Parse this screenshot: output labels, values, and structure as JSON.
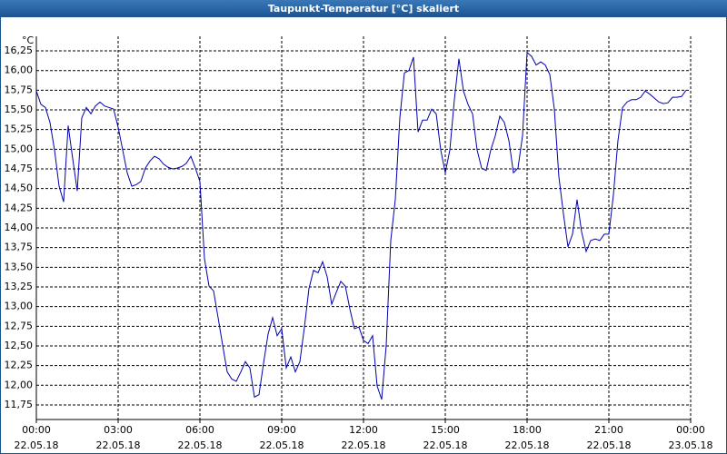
{
  "chart_data": {
    "type": "line",
    "title": "Taupunkt-Temperatur [°C] skaliert",
    "y_unit": "°C",
    "x": [
      0,
      10,
      20,
      30,
      40,
      50,
      60,
      70,
      80,
      90,
      100,
      110,
      120,
      130,
      140,
      150,
      160,
      170,
      180,
      190,
      200,
      210,
      220,
      230,
      240,
      250,
      260,
      270,
      280,
      290,
      300,
      310,
      320,
      330,
      340,
      350,
      360,
      370,
      380,
      390,
      400,
      410,
      420,
      430,
      440,
      450,
      460,
      470,
      480,
      490,
      500,
      510,
      520,
      530,
      540,
      550,
      560,
      570,
      580,
      590,
      600,
      610,
      620,
      630,
      640,
      650,
      660,
      670,
      680,
      690,
      700,
      710,
      720,
      730,
      740,
      750,
      760,
      770,
      780,
      790,
      800,
      810,
      820,
      830,
      840,
      850,
      860,
      870,
      880,
      890,
      900,
      910,
      920,
      930,
      940,
      950,
      960,
      970,
      980,
      990,
      1000,
      1010,
      1020,
      1030,
      1040,
      1050,
      1060,
      1070,
      1080,
      1090,
      1100,
      1110,
      1120,
      1130,
      1140,
      1150,
      1160,
      1170,
      1180,
      1190,
      1200,
      1210,
      1220,
      1230,
      1240,
      1250,
      1260,
      1270,
      1280,
      1290,
      1300,
      1310,
      1320,
      1330,
      1340,
      1350,
      1360,
      1370,
      1380,
      1390,
      1400,
      1410,
      1420,
      1430
    ],
    "series": [
      {
        "color": "#0000b0",
        "values": [
          15.74,
          15.57,
          15.53,
          15.34,
          14.99,
          14.53,
          14.33,
          15.3,
          14.88,
          14.47,
          15.4,
          15.53,
          15.45,
          15.55,
          15.6,
          15.55,
          15.53,
          15.51,
          15.28,
          14.99,
          14.7,
          14.53,
          14.55,
          14.59,
          14.76,
          14.85,
          14.91,
          14.88,
          14.81,
          14.77,
          14.75,
          14.76,
          14.78,
          14.82,
          14.91,
          14.76,
          14.59,
          13.61,
          13.26,
          13.2,
          12.86,
          12.51,
          12.17,
          12.08,
          12.05,
          12.17,
          12.3,
          12.22,
          11.85,
          11.88,
          12.28,
          12.65,
          12.86,
          12.63,
          12.72,
          12.22,
          12.36,
          12.17,
          12.3,
          12.74,
          13.23,
          13.46,
          13.43,
          13.57,
          13.38,
          13.03,
          13.18,
          13.32,
          13.26,
          12.97,
          12.72,
          12.74,
          12.57,
          12.53,
          12.63,
          11.99,
          11.82,
          12.51,
          13.84,
          14.36,
          15.4,
          15.97,
          16.0,
          16.17,
          15.22,
          15.37,
          15.37,
          15.51,
          15.45,
          14.99,
          14.7,
          14.99,
          15.63,
          16.15,
          15.74,
          15.57,
          15.45,
          14.99,
          14.76,
          14.73,
          14.99,
          15.17,
          15.42,
          15.34,
          15.11,
          14.7,
          14.76,
          15.17,
          16.23,
          16.18,
          16.07,
          16.11,
          16.07,
          15.95,
          15.51,
          14.65,
          14.18,
          13.76,
          13.92,
          14.36,
          13.95,
          13.7,
          13.84,
          13.86,
          13.84,
          13.92,
          13.92,
          14.42,
          15.11,
          15.53,
          15.6,
          15.63,
          15.63,
          15.66,
          15.74,
          15.7,
          15.65,
          15.6,
          15.58,
          15.59,
          15.66,
          15.66,
          15.67,
          15.75
        ]
      }
    ],
    "xlim": [
      0,
      1440
    ],
    "xticks": [
      {
        "value": 0,
        "label": "00:00"
      },
      {
        "value": 180,
        "label": "03:00"
      },
      {
        "value": 360,
        "label": "06:00"
      },
      {
        "value": 540,
        "label": "09:00"
      },
      {
        "value": 720,
        "label": "12:00"
      },
      {
        "value": 900,
        "label": "15:00"
      },
      {
        "value": 1080,
        "label": "18:00"
      },
      {
        "value": 1260,
        "label": "21:00"
      },
      {
        "value": 1440,
        "label": "00:00"
      }
    ],
    "xtick_dates": [
      "22.05.18",
      "22.05.18",
      "22.05.18",
      "22.05.18",
      "22.05.18",
      "22.05.18",
      "22.05.18",
      "22.05.18",
      "23.05.18"
    ],
    "ylim": [
      11.565,
      16.435
    ],
    "yticks": [
      {
        "value": 11.75,
        "label": "11,75"
      },
      {
        "value": 12,
        "label": "12,00"
      },
      {
        "value": 12.25,
        "label": "12,25"
      },
      {
        "value": 12.5,
        "label": "12,50"
      },
      {
        "value": 12.75,
        "label": "12,75"
      },
      {
        "value": 13,
        "label": "13,00"
      },
      {
        "value": 13.25,
        "label": "13,25"
      },
      {
        "value": 13.5,
        "label": "13,50"
      },
      {
        "value": 13.75,
        "label": "13,75"
      },
      {
        "value": 14,
        "label": "14,00"
      },
      {
        "value": 14.25,
        "label": "14,25"
      },
      {
        "value": 14.5,
        "label": "14,50"
      },
      {
        "value": 14.75,
        "label": "14,75"
      },
      {
        "value": 15,
        "label": "15,00"
      },
      {
        "value": 15.25,
        "label": "15,25"
      },
      {
        "value": 15.5,
        "label": "15,50"
      },
      {
        "value": 15.75,
        "label": "15,75"
      },
      {
        "value": 16,
        "label": "16,00"
      },
      {
        "value": 16.25,
        "label": "16,25"
      }
    ],
    "grid": true
  }
}
